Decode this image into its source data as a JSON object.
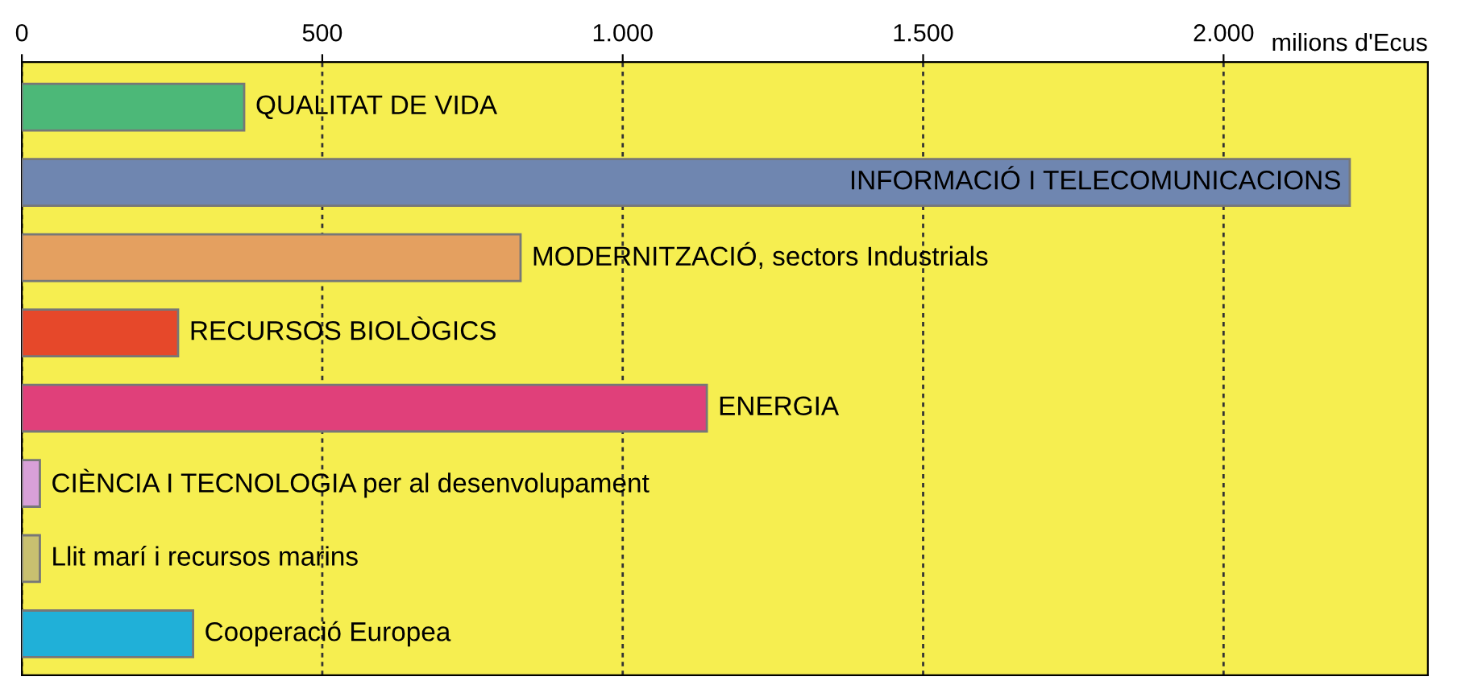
{
  "chart_data": {
    "type": "bar",
    "orientation": "horizontal",
    "xlabel": "milions d'Ecus",
    "categories": [
      "QUALITAT DE VIDA",
      "INFORMACIÓ I TELECOMUNICACIONS",
      "MODERNITZACIÓ, sectors Industrials",
      "RECURSOS BIOLÒGICS",
      "ENERGIA",
      "CIÈNCIA I TECNOLOGIA per al desenvolupament",
      "Llit marí i recursos marins",
      "Cooperació Europea"
    ],
    "values": [
      370,
      2210,
      830,
      260,
      1140,
      30,
      30,
      285
    ],
    "colors": [
      "#4cb878",
      "#6f86b0",
      "#e4a060",
      "#e6482a",
      "#e0407a",
      "#d8a0d8",
      "#c8c070",
      "#20b0d8"
    ],
    "xlim": [
      0,
      2340
    ],
    "xticks": [
      0,
      500,
      {
        "value": 1000,
        "label": "1.000"
      },
      {
        "value": 1500,
        "label": "1.500"
      },
      {
        "value": 2000,
        "label": "2.000"
      }
    ],
    "grid": "x",
    "tick_labels": "x"
  }
}
